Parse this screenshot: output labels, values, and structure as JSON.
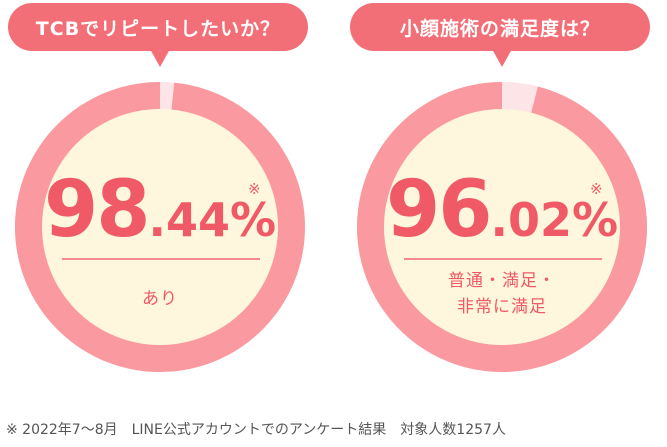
{
  "stats": [
    {
      "question": "TCBでリピートしたいか？",
      "integer": "98",
      "decimal": ".44",
      "percent": "%",
      "mark": "※",
      "caption_lines": [
        "あり"
      ],
      "value_percent": 98.44
    },
    {
      "question": "小顔施術の満足度は？",
      "integer": "96",
      "decimal": ".02",
      "percent": "%",
      "mark": "※",
      "caption_lines": [
        "普通・満足・",
        "非常に満足"
      ],
      "value_percent": 96.02
    }
  ],
  "footnote": "※ 2022年7〜8月　LINE公式アカウントでのアンケート結果　対象人数1257人",
  "colors": {
    "accent": "#f36f78",
    "ring": "#fa9aa0",
    "ring_gap": "#fde4e6",
    "center": "#fef7dd",
    "text": "#f05a66"
  }
}
